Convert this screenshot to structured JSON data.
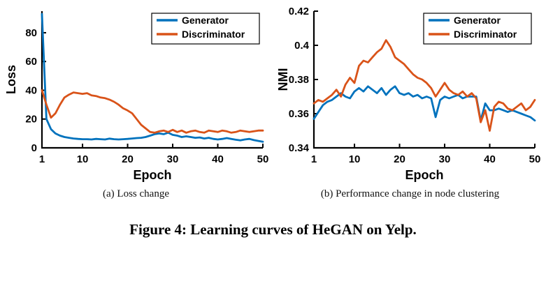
{
  "figure": {
    "title": "Figure 4: Learning curves of HeGAN on Yelp.",
    "caption_a": "(a)  Loss change",
    "caption_b": "(b)  Performance change in node clustering"
  },
  "colors": {
    "generator": "#0072BD",
    "discriminator": "#D95319",
    "axis": "#000000"
  },
  "chart_data": [
    {
      "id": "loss",
      "type": "line",
      "title": "",
      "xlabel": "Epoch",
      "ylabel": "Loss",
      "xlim": [
        1,
        50
      ],
      "ylim": [
        0,
        95
      ],
      "xticks": [
        1,
        10,
        20,
        30,
        40,
        50
      ],
      "xtick_labels": [
        "1",
        "10",
        "20",
        "30",
        "40",
        "50"
      ],
      "yticks": [
        0,
        20,
        40,
        60,
        80
      ],
      "ytick_labels": [
        "0",
        "20",
        "40",
        "60",
        "80"
      ],
      "grid": false,
      "legend_position": "top-right",
      "x": [
        1,
        2,
        3,
        4,
        5,
        6,
        7,
        8,
        9,
        10,
        11,
        12,
        13,
        14,
        15,
        16,
        17,
        18,
        19,
        20,
        21,
        22,
        23,
        24,
        25,
        26,
        27,
        28,
        29,
        30,
        31,
        32,
        33,
        34,
        35,
        36,
        37,
        38,
        39,
        40,
        41,
        42,
        43,
        44,
        45,
        46,
        47,
        48,
        49,
        50
      ],
      "series": [
        {
          "name": "Generator",
          "color": "#0072BD",
          "values": [
            93,
            20,
            13,
            10,
            8.5,
            7.5,
            7,
            6.5,
            6.2,
            6,
            6,
            5.8,
            6.2,
            6,
            5.8,
            6.4,
            6,
            5.8,
            6,
            6.2,
            6.5,
            6.8,
            7,
            7.5,
            8.5,
            9.5,
            10,
            9.5,
            10.5,
            9,
            8.5,
            7.5,
            8,
            7.5,
            7,
            7.2,
            6.5,
            7,
            6.2,
            5.8,
            6.2,
            6.8,
            6.2,
            5.6,
            5.2,
            5.8,
            6.2,
            5.4,
            4.8,
            4.2
          ]
        },
        {
          "name": "Discriminator",
          "color": "#D95319",
          "values": [
            40,
            30,
            21,
            24,
            30,
            35,
            37,
            38.5,
            38,
            37.5,
            38,
            36.5,
            36,
            35,
            34.5,
            33.5,
            32,
            30,
            27.5,
            26,
            24,
            20,
            16,
            13.5,
            11,
            10.5,
            11.5,
            12,
            11,
            12.5,
            11,
            12,
            10.5,
            11.5,
            12,
            11,
            10.5,
            12,
            11.5,
            11,
            12,
            11.5,
            10.5,
            11,
            12,
            11.5,
            11,
            11.5,
            12,
            12
          ]
        }
      ]
    },
    {
      "id": "nmi",
      "type": "line",
      "title": "",
      "xlabel": "Epoch",
      "ylabel": "NMI",
      "xlim": [
        1,
        50
      ],
      "ylim": [
        0.34,
        0.42
      ],
      "xticks": [
        1,
        10,
        20,
        30,
        40,
        50
      ],
      "xtick_labels": [
        "1",
        "10",
        "20",
        "30",
        "40",
        "50"
      ],
      "yticks": [
        0.34,
        0.36,
        0.38,
        0.4,
        0.42
      ],
      "ytick_labels": [
        "0.34",
        "0.36",
        "0.38",
        "0.4",
        "0.42"
      ],
      "grid": false,
      "legend_position": "top-right",
      "x": [
        1,
        2,
        3,
        4,
        5,
        6,
        7,
        8,
        9,
        10,
        11,
        12,
        13,
        14,
        15,
        16,
        17,
        18,
        19,
        20,
        21,
        22,
        23,
        24,
        25,
        26,
        27,
        28,
        29,
        30,
        31,
        32,
        33,
        34,
        35,
        36,
        37,
        38,
        39,
        40,
        41,
        42,
        43,
        44,
        45,
        46,
        47,
        48,
        49,
        50
      ],
      "series": [
        {
          "name": "Generator",
          "color": "#0072BD",
          "values": [
            0.357,
            0.361,
            0.365,
            0.367,
            0.368,
            0.37,
            0.372,
            0.37,
            0.369,
            0.373,
            0.375,
            0.373,
            0.376,
            0.374,
            0.372,
            0.375,
            0.371,
            0.374,
            0.376,
            0.372,
            0.371,
            0.372,
            0.37,
            0.371,
            0.369,
            0.37,
            0.369,
            0.358,
            0.368,
            0.37,
            0.369,
            0.37,
            0.371,
            0.369,
            0.37,
            0.37,
            0.37,
            0.356,
            0.366,
            0.362,
            0.362,
            0.363,
            0.362,
            0.361,
            0.362,
            0.361,
            0.36,
            0.359,
            0.358,
            0.356
          ]
        },
        {
          "name": "Discriminator",
          "color": "#D95319",
          "values": [
            0.366,
            0.368,
            0.367,
            0.369,
            0.371,
            0.374,
            0.37,
            0.377,
            0.381,
            0.378,
            0.388,
            0.391,
            0.39,
            0.393,
            0.396,
            0.398,
            0.403,
            0.399,
            0.393,
            0.391,
            0.389,
            0.386,
            0.383,
            0.381,
            0.38,
            0.378,
            0.375,
            0.37,
            0.374,
            0.378,
            0.374,
            0.372,
            0.371,
            0.373,
            0.37,
            0.372,
            0.369,
            0.355,
            0.362,
            0.35,
            0.364,
            0.367,
            0.366,
            0.363,
            0.362,
            0.364,
            0.366,
            0.362,
            0.364,
            0.368
          ]
        }
      ]
    }
  ]
}
